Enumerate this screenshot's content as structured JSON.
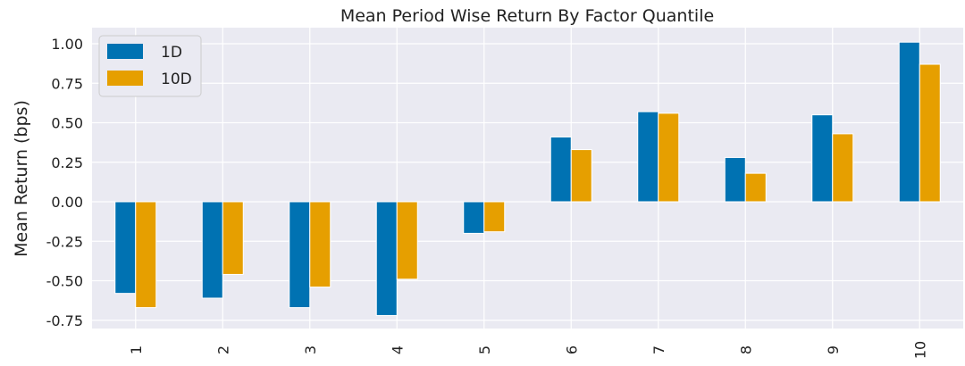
{
  "chart_data": {
    "type": "bar",
    "title": "Mean Period Wise Return By Factor Quantile",
    "xlabel": "",
    "ylabel": "Mean Return (bps)",
    "categories": [
      "1",
      "2",
      "3",
      "4",
      "5",
      "6",
      "7",
      "8",
      "9",
      "10"
    ],
    "series": [
      {
        "name": "1D",
        "color": "#0072b2",
        "values": [
          -0.58,
          -0.61,
          -0.67,
          -0.72,
          -0.2,
          0.41,
          0.57,
          0.28,
          0.55,
          1.01
        ]
      },
      {
        "name": "10D",
        "color": "#e69f00",
        "values": [
          -0.67,
          -0.46,
          -0.54,
          -0.49,
          -0.19,
          0.33,
          0.56,
          0.18,
          0.43,
          0.87
        ]
      }
    ],
    "yticks": [
      "1.00",
      "0.75",
      "0.50",
      "0.25",
      "0.00",
      "-0.25",
      "-0.50",
      "-0.75"
    ],
    "ylim": [
      -0.8,
      1.08
    ],
    "grid": true,
    "legend_position": "top-left",
    "background_color": "#eaeaf2"
  }
}
